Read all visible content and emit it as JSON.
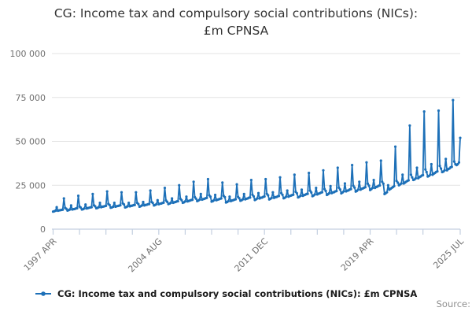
{
  "chart_data": {
    "type": "line",
    "title": "CG: Income tax and compulsory social contributions (NICs): £m CPNSA",
    "title_lines": [
      "CG: Income tax and compulsory social contributions (NICs):",
      "£m CPNSA"
    ],
    "frequency": "monthly",
    "x_start": "1997 APR",
    "x_end": "2025 JUL",
    "xlabel": "",
    "ylabel": "",
    "ylim": [
      0,
      100000
    ],
    "grid": "horizontal-only",
    "legend_position": "bottom-left",
    "marker": "circle",
    "y_ticks": [
      {
        "value": 0,
        "label": "0"
      },
      {
        "value": 25000,
        "label": "25 000"
      },
      {
        "value": 50000,
        "label": "50 000"
      },
      {
        "value": 75000,
        "label": "75 000"
      },
      {
        "value": 100000,
        "label": "100 000"
      }
    ],
    "x_tick_months": [
      0,
      22,
      44,
      66,
      88,
      110,
      132,
      154,
      176,
      198,
      220,
      242,
      264,
      286,
      308,
      339
    ],
    "x_labeled_ticks": [
      {
        "month": 0,
        "label": "1997 APR"
      },
      {
        "month": 88,
        "label": "2004 AUG"
      },
      {
        "month": 176,
        "label": "2011 DEC"
      },
      {
        "month": 264,
        "label": "2019 APR"
      },
      {
        "month": 339,
        "label": "2025 JUL"
      }
    ],
    "series": [
      {
        "name": "CG: Income tax and compulsory social contributions (NICs): £m CPNSA",
        "values": [
          10000,
          10200,
          10500,
          12500,
          10500,
          10700,
          10800,
          11000,
          11100,
          17500,
          12100,
          11600,
          10600,
          10900,
          11200,
          13500,
          11200,
          11400,
          11500,
          11800,
          11900,
          19000,
          12900,
          12300,
          11200,
          11400,
          11800,
          14000,
          11800,
          12000,
          12200,
          12400,
          12500,
          20000,
          13600,
          13000,
          11900,
          12100,
          12500,
          15000,
          12500,
          12800,
          12900,
          13100,
          13300,
          21500,
          14400,
          13800,
          12200,
          12400,
          12800,
          15000,
          12800,
          13100,
          13200,
          13400,
          13600,
          21000,
          14700,
          14100,
          12400,
          12600,
          13000,
          15000,
          13000,
          13300,
          13400,
          13700,
          13800,
          21000,
          15000,
          14300,
          12800,
          13100,
          13500,
          15500,
          13500,
          13800,
          13900,
          14200,
          14300,
          22000,
          15500,
          14900,
          13500,
          13800,
          14200,
          16500,
          14200,
          14500,
          14600,
          14900,
          15100,
          23500,
          16300,
          15600,
          14300,
          14600,
          15000,
          17500,
          15000,
          15300,
          15500,
          15800,
          15900,
          25000,
          17300,
          16500,
          15000,
          15300,
          15800,
          18500,
          15800,
          16100,
          16300,
          16600,
          16700,
          27000,
          18200,
          17400,
          16000,
          16300,
          16800,
          20000,
          16800,
          17100,
          17300,
          17600,
          17800,
          28500,
          19300,
          18500,
          15700,
          16000,
          16500,
          19500,
          16500,
          16800,
          17000,
          17300,
          17500,
          26500,
          19000,
          18200,
          15200,
          15500,
          16000,
          18500,
          16000,
          16300,
          16500,
          16800,
          17000,
          25500,
          18400,
          17600,
          16200,
          16500,
          17000,
          20000,
          17000,
          17300,
          17500,
          17900,
          18000,
          28000,
          19600,
          18700,
          16600,
          17000,
          17500,
          20500,
          17500,
          17900,
          18000,
          18400,
          18600,
          28500,
          20100,
          19300,
          16900,
          17300,
          17800,
          21000,
          17800,
          18200,
          18300,
          18700,
          18900,
          29500,
          20500,
          19600,
          17600,
          17900,
          18500,
          22000,
          18500,
          18900,
          19100,
          19400,
          19600,
          31000,
          21300,
          20400,
          18100,
          18400,
          19000,
          22500,
          19000,
          19400,
          19600,
          20000,
          20100,
          32000,
          21900,
          20900,
          18800,
          19200,
          19800,
          23500,
          19800,
          20200,
          20400,
          20800,
          21000,
          33500,
          22800,
          21800,
          19500,
          19900,
          20500,
          24500,
          20500,
          20900,
          21100,
          21500,
          21700,
          35000,
          23600,
          22600,
          20400,
          20900,
          21500,
          26000,
          21500,
          21900,
          22100,
          22600,
          22800,
          36500,
          24700,
          23700,
          21400,
          21800,
          22500,
          27000,
          22500,
          23000,
          23200,
          23600,
          23900,
          38000,
          25900,
          24800,
          22300,
          22800,
          23500,
          28000,
          23500,
          24000,
          24200,
          24700,
          24900,
          39000,
          27000,
          25900,
          20000,
          20500,
          21000,
          25000,
          22500,
          23000,
          23500,
          24000,
          24500,
          47000,
          27500,
          26500,
          25000,
          25500,
          26000,
          31000,
          26000,
          26500,
          27000,
          27500,
          27800,
          59000,
          31000,
          29500,
          28000,
          28300,
          29000,
          35000,
          29000,
          29600,
          30000,
          30500,
          30800,
          67000,
          34000,
          32500,
          30000,
          30300,
          31000,
          37000,
          31000,
          31600,
          32000,
          32600,
          32900,
          67500,
          36000,
          34500,
          32500,
          32800,
          33500,
          40000,
          33500,
          34200,
          34500,
          35200,
          35500,
          73500,
          38500,
          37000,
          36500,
          37000,
          38000,
          52000
        ]
      }
    ],
    "colors": {
      "line": "#1d70b8",
      "grid": "#e3e3e3",
      "axis": "#c3cfe0",
      "tick_text": "#707070",
      "title_text": "#333333"
    }
  },
  "legend": {
    "label": "CG: Income tax and compulsory social contributions (NICs): £m CPNSA"
  },
  "footer": {
    "source_label": "Source:"
  }
}
